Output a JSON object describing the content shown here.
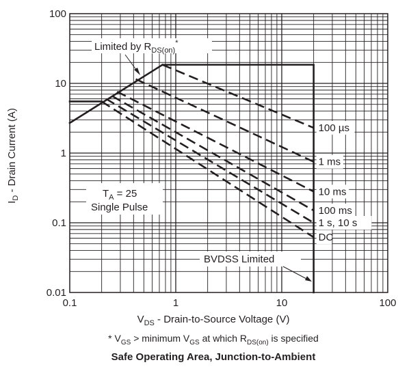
{
  "chart_data": {
    "type": "line",
    "title": "Safe Operating Area, Junction-to-Ambient",
    "footnote": {
      "prefix": "* V",
      "gs_sub": "GS",
      "middle": " > minimum V",
      "gs_sub2": "GS",
      "at_which": " at which R",
      "r_sub": "DS(on)",
      "suffix": " is specified"
    },
    "x_axis": {
      "label_main": "V",
      "label_sub": "DS",
      "label_rest": " - Drain-to-Source Voltage (V)",
      "scale": "log",
      "range": [
        0.1,
        100
      ],
      "ticks": [
        "0.1",
        "1",
        "10",
        "100"
      ],
      "tick_values": [
        0.1,
        1,
        10,
        100
      ]
    },
    "y_axis": {
      "label_main": "I",
      "label_sub": "D",
      "label_rest": " - Drain Current (A)",
      "scale": "log",
      "range": [
        0.01,
        100
      ],
      "ticks": [
        "0.01",
        "0.1",
        "1",
        "10",
        "100"
      ],
      "tick_values": [
        0.01,
        0.1,
        1,
        10,
        100
      ]
    },
    "grid": true,
    "boundaries": [
      {
        "style": "solid",
        "x": [
          0.1,
          0.2
        ],
        "y": [
          5.5,
          5.5
        ]
      },
      {
        "style": "solid",
        "x": [
          0.1,
          0.75
        ],
        "y": [
          2.7,
          18.5
        ]
      },
      {
        "style": "solid",
        "x": [
          0.75,
          20
        ],
        "y": [
          18.5,
          18.5
        ]
      },
      {
        "style": "solid",
        "x": [
          20,
          20
        ],
        "y": [
          18.5,
          0.01
        ]
      }
    ],
    "series": [
      {
        "name": "100 µs",
        "style": "dashed",
        "x": [
          0.75,
          20
        ],
        "y": [
          18.5,
          2.3
        ]
      },
      {
        "name": "1 ms",
        "style": "dashed",
        "x": [
          0.42,
          20
        ],
        "y": [
          11.5,
          0.75
        ]
      },
      {
        "name": "10 ms",
        "style": "dashed",
        "x": [
          0.28,
          20
        ],
        "y": [
          7.6,
          0.28
        ]
      },
      {
        "name": "100 ms",
        "style": "dashed",
        "x": [
          0.25,
          20
        ],
        "y": [
          6.6,
          0.15
        ]
      },
      {
        "name": "1 s, 10 s",
        "style": "dashed",
        "x": [
          0.22,
          20
        ],
        "y": [
          6.0,
          0.1
        ]
      },
      {
        "name": "DC",
        "style": "dashed",
        "x": [
          0.2,
          20
        ],
        "y": [
          5.5,
          0.062
        ]
      }
    ],
    "annotations": {
      "rdson": {
        "main": "Limited by R",
        "sub": "DS(on)",
        "sup": "*"
      },
      "ta": {
        "main": "T",
        "sub": "A",
        "rest": " = 25"
      },
      "pulse": "Single Pulse",
      "bvdss": "BVDSS Limited"
    },
    "colors": {
      "line": "#231f20",
      "grid": "#231f20",
      "background": "#ffffff"
    }
  }
}
